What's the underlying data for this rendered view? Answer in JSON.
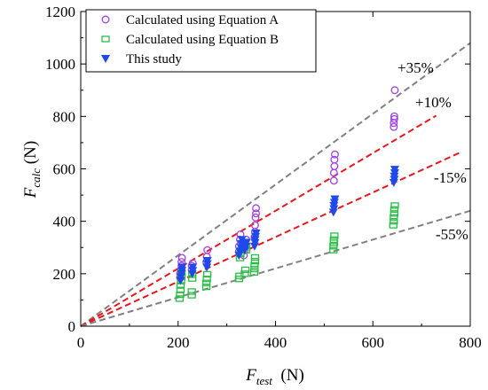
{
  "chart_data": {
    "type": "scatter",
    "title": "",
    "xlabel": {
      "main": "F",
      "sub": "test",
      "unit": "(N)"
    },
    "ylabel": {
      "main": "F",
      "sub": "calc",
      "unit": "(N)"
    },
    "xlim": [
      0,
      800
    ],
    "ylim": [
      0,
      1200
    ],
    "xticks": [
      0,
      200,
      400,
      600,
      800
    ],
    "yticks": [
      0,
      200,
      400,
      600,
      800,
      1000,
      1200
    ],
    "grid": false,
    "legend_position": "top-left",
    "reference_lines": [
      {
        "label": "+35%",
        "slope": 1.35,
        "x_end": 800,
        "color": "#808080"
      },
      {
        "label": "+10%",
        "slope": 1.1,
        "x_end": 730,
        "color": "#e8161b"
      },
      {
        "label": "-15%",
        "slope": 0.85,
        "x_end": 780,
        "color": "#e8161b"
      },
      {
        "label": "-55%",
        "slope": 0.55,
        "x_end": 800,
        "color": "#808080"
      }
    ],
    "series": [
      {
        "name": "Calculated using Equation A",
        "marker": "circle",
        "color": "#a040e8",
        "points": [
          [
            204,
            185
          ],
          [
            204,
            200
          ],
          [
            206,
            215
          ],
          [
            207,
            230
          ],
          [
            207,
            245
          ],
          [
            208,
            260
          ],
          [
            228,
            215
          ],
          [
            228,
            230
          ],
          [
            230,
            240
          ],
          [
            258,
            245
          ],
          [
            259,
            265
          ],
          [
            260,
            290
          ],
          [
            325,
            285
          ],
          [
            325,
            305
          ],
          [
            327,
            330
          ],
          [
            328,
            350
          ],
          [
            335,
            270
          ],
          [
            337,
            290
          ],
          [
            338,
            310
          ],
          [
            340,
            330
          ],
          [
            357,
            340
          ],
          [
            358,
            360
          ],
          [
            358,
            385
          ],
          [
            359,
            415
          ],
          [
            360,
            430
          ],
          [
            360,
            450
          ],
          [
            520,
            555
          ],
          [
            520,
            585
          ],
          [
            521,
            610
          ],
          [
            521,
            635
          ],
          [
            522,
            655
          ],
          [
            643,
            760
          ],
          [
            643,
            775
          ],
          [
            644,
            790
          ],
          [
            644,
            800
          ],
          [
            645,
            900
          ]
        ]
      },
      {
        "name": "Calculated using Equation B",
        "marker": "square",
        "color": "#2bbd46",
        "points": [
          [
            203,
            105
          ],
          [
            204,
            120
          ],
          [
            205,
            138
          ],
          [
            205,
            155
          ],
          [
            206,
            172
          ],
          [
            207,
            188
          ],
          [
            207,
            205
          ],
          [
            228,
            118
          ],
          [
            228,
            132
          ],
          [
            229,
            182
          ],
          [
            229,
            196
          ],
          [
            258,
            150
          ],
          [
            258,
            165
          ],
          [
            259,
            180
          ],
          [
            260,
            198
          ],
          [
            325,
            180
          ],
          [
            326,
            192
          ],
          [
            327,
            260
          ],
          [
            328,
            275
          ],
          [
            329,
            290
          ],
          [
            337,
            200
          ],
          [
            338,
            215
          ],
          [
            340,
            290
          ],
          [
            340,
            305
          ],
          [
            356,
            205
          ],
          [
            357,
            218
          ],
          [
            357,
            232
          ],
          [
            358,
            248
          ],
          [
            358,
            262
          ],
          [
            519,
            290
          ],
          [
            519,
            305
          ],
          [
            520,
            318
          ],
          [
            520,
            330
          ],
          [
            521,
            345
          ],
          [
            642,
            385
          ],
          [
            643,
            400
          ],
          [
            643,
            415
          ],
          [
            644,
            430
          ],
          [
            644,
            445
          ],
          [
            645,
            460
          ]
        ]
      },
      {
        "name": "This study",
        "marker": "triangle-down",
        "color": "#1f49e8",
        "points": [
          [
            205,
            175
          ],
          [
            206,
            188
          ],
          [
            207,
            200
          ],
          [
            208,
            212
          ],
          [
            208,
            225
          ],
          [
            229,
            200
          ],
          [
            230,
            212
          ],
          [
            230,
            225
          ],
          [
            259,
            225
          ],
          [
            260,
            238
          ],
          [
            260,
            250
          ],
          [
            325,
            270
          ],
          [
            327,
            285
          ],
          [
            329,
            300
          ],
          [
            330,
            315
          ],
          [
            331,
            330
          ],
          [
            337,
            290
          ],
          [
            339,
            305
          ],
          [
            340,
            320
          ],
          [
            357,
            305
          ],
          [
            358,
            318
          ],
          [
            358,
            330
          ],
          [
            359,
            342
          ],
          [
            360,
            355
          ],
          [
            519,
            435
          ],
          [
            520,
            448
          ],
          [
            520,
            460
          ],
          [
            521,
            472
          ],
          [
            522,
            485
          ],
          [
            643,
            548
          ],
          [
            644,
            560
          ],
          [
            644,
            572
          ],
          [
            645,
            585
          ],
          [
            645,
            598
          ]
        ]
      }
    ]
  }
}
